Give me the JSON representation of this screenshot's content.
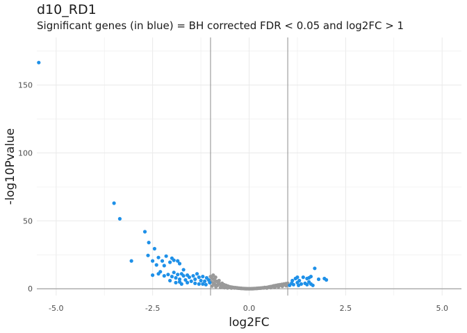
{
  "chart_data": {
    "type": "scatter",
    "title": "d10_RD1",
    "subtitle": "Significant genes (in blue) = BH corrected FDR < 0.05 and log2FC > 1",
    "xlabel": "log2FC",
    "ylabel": "-log10Pvalue",
    "xlim": [
      -5.5,
      5.5
    ],
    "ylim": [
      -5,
      185
    ],
    "x_ticks": [
      -5.0,
      -2.5,
      0.0,
      2.5,
      5.0
    ],
    "x_tick_labels": [
      "-5.0",
      "-2.5",
      "0.0",
      "2.5",
      "5.0"
    ],
    "y_ticks": [
      0,
      50,
      100,
      150
    ],
    "y_tick_labels": [
      "0",
      "50",
      "100",
      "150"
    ],
    "vlines": [
      -1,
      1
    ],
    "hline": 0,
    "grid": true,
    "legend": "none",
    "colors": {
      "significant": "#1e90e8",
      "not_significant": "#999999",
      "threshold_line": "#8c8c8c",
      "grid": "#ebebeb"
    },
    "series": [
      {
        "points": [
          [
            -5.45,
            166.5
          ],
          [
            -3.5,
            63
          ],
          [
            -3.35,
            51.5
          ],
          [
            -3.05,
            20.5
          ],
          [
            -2.7,
            42
          ],
          [
            -2.6,
            34
          ],
          [
            -2.45,
            29.5
          ],
          [
            -2.62,
            24.5
          ],
          [
            -2.5,
            20.5
          ],
          [
            -2.4,
            17.5
          ],
          [
            -2.35,
            23
          ],
          [
            -2.25,
            20.5
          ],
          [
            -2.2,
            17
          ],
          [
            -2.15,
            24
          ],
          [
            -2.05,
            19.5
          ],
          [
            -2.0,
            22.5
          ],
          [
            -1.95,
            21
          ],
          [
            -1.85,
            20.5
          ],
          [
            -1.8,
            18.5
          ],
          [
            -1.7,
            14
          ],
          [
            -2.35,
            11
          ],
          [
            -2.2,
            9.5
          ],
          [
            -2.3,
            12.5
          ],
          [
            -2.1,
            10.5
          ],
          [
            -2.0,
            9
          ],
          [
            -1.95,
            12
          ],
          [
            -1.9,
            8
          ],
          [
            -1.85,
            10.5
          ],
          [
            -1.8,
            7
          ],
          [
            -1.75,
            11
          ],
          [
            -1.7,
            9.5
          ],
          [
            -1.65,
            6.5
          ],
          [
            -1.6,
            10
          ],
          [
            -1.55,
            8.5
          ],
          [
            -1.5,
            5.5
          ],
          [
            -1.45,
            9.5
          ],
          [
            -1.4,
            7
          ],
          [
            -1.35,
            11
          ],
          [
            -1.3,
            8.5
          ],
          [
            -1.25,
            6
          ],
          [
            -1.2,
            9
          ],
          [
            -1.15,
            5.5
          ],
          [
            -1.1,
            8
          ],
          [
            -1.05,
            6.5
          ],
          [
            -1.02,
            4.5
          ],
          [
            -1.6,
            4.5
          ],
          [
            -1.4,
            4
          ],
          [
            -1.3,
            3.5
          ],
          [
            -1.2,
            3.5
          ],
          [
            -1.12,
            3
          ],
          [
            -1.8,
            5
          ],
          [
            -1.9,
            4.5
          ],
          [
            -2.05,
            6
          ],
          [
            -2.5,
            10
          ],
          [
            -1.75,
            3.5
          ],
          [
            1.05,
            2.5
          ],
          [
            1.1,
            4
          ],
          [
            1.12,
            6
          ],
          [
            1.15,
            3
          ],
          [
            1.2,
            7.5
          ],
          [
            1.25,
            4.5
          ],
          [
            1.28,
            2.5
          ],
          [
            1.3,
            6
          ],
          [
            1.35,
            3.5
          ],
          [
            1.4,
            8.5
          ],
          [
            1.45,
            4
          ],
          [
            1.5,
            3
          ],
          [
            1.55,
            5
          ],
          [
            1.6,
            3.5
          ],
          [
            1.65,
            2.5
          ],
          [
            1.5,
            7.5
          ],
          [
            1.55,
            8
          ],
          [
            1.6,
            9
          ],
          [
            1.7,
            15
          ],
          [
            1.8,
            7
          ],
          [
            1.95,
            7.5
          ],
          [
            2.0,
            6.5
          ],
          [
            1.25,
            8.5
          ]
        ]
      },
      {
        "points": [
          [
            -1.0,
            9
          ],
          [
            -0.98,
            5
          ],
          [
            -0.95,
            7.5
          ],
          [
            -0.92,
            4
          ],
          [
            -0.9,
            6.5
          ],
          [
            -0.88,
            3
          ],
          [
            -0.85,
            5.5
          ],
          [
            -0.82,
            2.5
          ],
          [
            -0.8,
            4.5
          ],
          [
            -0.78,
            6
          ],
          [
            -0.75,
            3.5
          ],
          [
            -0.72,
            2
          ],
          [
            -0.7,
            4
          ],
          [
            -0.68,
            1.5
          ],
          [
            -0.65,
            3
          ],
          [
            -0.62,
            2
          ],
          [
            -0.6,
            2.5
          ],
          [
            -0.58,
            1.5
          ],
          [
            -0.55,
            2
          ],
          [
            -0.52,
            1
          ],
          [
            -0.5,
            1.5
          ],
          [
            -0.48,
            1
          ],
          [
            -0.45,
            1.2
          ],
          [
            -0.42,
            0.8
          ],
          [
            -0.4,
            1
          ],
          [
            -0.38,
            0.6
          ],
          [
            -0.35,
            0.8
          ],
          [
            -0.32,
            0.5
          ],
          [
            -0.3,
            0.6
          ],
          [
            -0.28,
            0.4
          ],
          [
            -0.25,
            0.4
          ],
          [
            -0.22,
            0.3
          ],
          [
            -0.2,
            0.3
          ],
          [
            -0.18,
            0.2
          ],
          [
            -0.15,
            0.2
          ],
          [
            -0.12,
            0.1
          ],
          [
            -0.1,
            0.1
          ],
          [
            -0.08,
            0.05
          ],
          [
            -0.05,
            0.05
          ],
          [
            -0.02,
            0
          ],
          [
            0.0,
            0
          ],
          [
            0.02,
            0
          ],
          [
            0.05,
            0.05
          ],
          [
            0.08,
            0.05
          ],
          [
            0.1,
            0.1
          ],
          [
            0.12,
            0.1
          ],
          [
            0.15,
            0.2
          ],
          [
            0.18,
            0.2
          ],
          [
            0.2,
            0.3
          ],
          [
            0.22,
            0.3
          ],
          [
            0.25,
            0.4
          ],
          [
            0.28,
            0.4
          ],
          [
            0.3,
            0.5
          ],
          [
            0.32,
            0.5
          ],
          [
            0.35,
            0.7
          ],
          [
            0.38,
            0.6
          ],
          [
            0.4,
            0.9
          ],
          [
            0.42,
            0.8
          ],
          [
            0.45,
            1
          ],
          [
            0.48,
            1
          ],
          [
            0.5,
            1.3
          ],
          [
            0.52,
            1.2
          ],
          [
            0.55,
            1.6
          ],
          [
            0.58,
            1.5
          ],
          [
            0.6,
            1.8
          ],
          [
            0.62,
            2
          ],
          [
            0.65,
            2.2
          ],
          [
            0.68,
            1.8
          ],
          [
            0.7,
            2.5
          ],
          [
            0.72,
            2.2
          ],
          [
            0.75,
            2.8
          ],
          [
            0.78,
            2.5
          ],
          [
            0.8,
            3
          ],
          [
            0.82,
            2.6
          ],
          [
            0.85,
            3.2
          ],
          [
            0.88,
            2.8
          ],
          [
            0.9,
            3.5
          ],
          [
            0.92,
            3
          ],
          [
            0.95,
            3.8
          ],
          [
            0.98,
            3.2
          ],
          [
            1.0,
            4
          ],
          [
            -0.96,
            2
          ],
          [
            -0.86,
            1.5
          ],
          [
            -0.74,
            1
          ],
          [
            -0.64,
            0.8
          ],
          [
            -0.56,
            0.6
          ],
          [
            -0.46,
            0.5
          ],
          [
            0.46,
            0.5
          ],
          [
            0.56,
            0.8
          ],
          [
            0.66,
            1
          ],
          [
            0.76,
            1.4
          ],
          [
            0.86,
            1.8
          ],
          [
            0.96,
            2.2
          ],
          [
            -0.93,
            10
          ],
          [
            -0.87,
            8.5
          ]
        ]
      }
    ]
  }
}
